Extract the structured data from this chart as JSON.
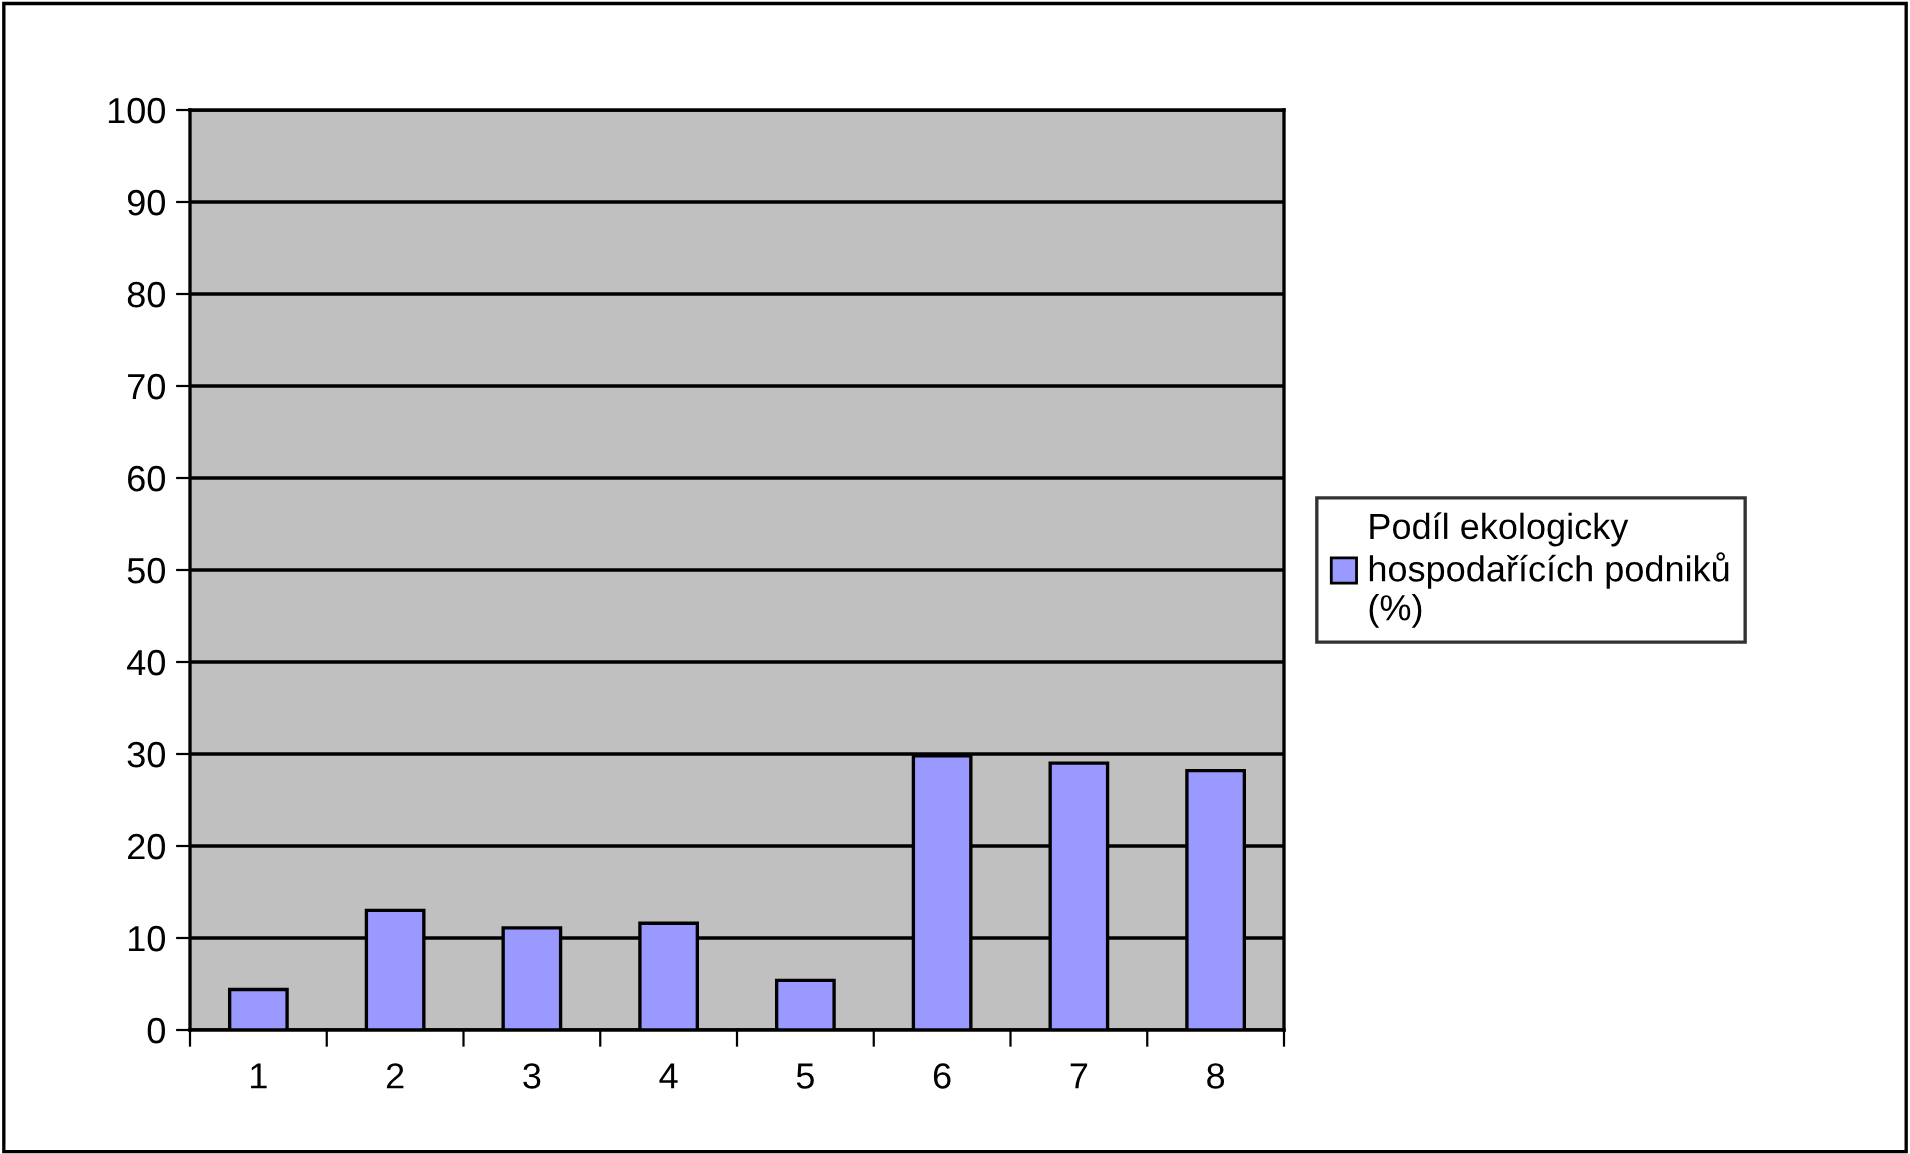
{
  "chart_data": {
    "type": "bar",
    "categories": [
      "1",
      "2",
      "3",
      "4",
      "5",
      "6",
      "7",
      "8"
    ],
    "series": [
      {
        "name": "Podíl ekologicky\nhospodařících podniků\n(%)",
        "color": "#9999ff",
        "values": [
          4.4,
          13.0,
          11.1,
          11.6,
          5.4,
          29.8,
          29.0,
          28.2
        ]
      }
    ],
    "ylim": [
      0,
      100
    ],
    "yticks": [
      0,
      10,
      20,
      30,
      40,
      50,
      60,
      70,
      80,
      90,
      100
    ],
    "grid": "y",
    "legend": "right"
  }
}
